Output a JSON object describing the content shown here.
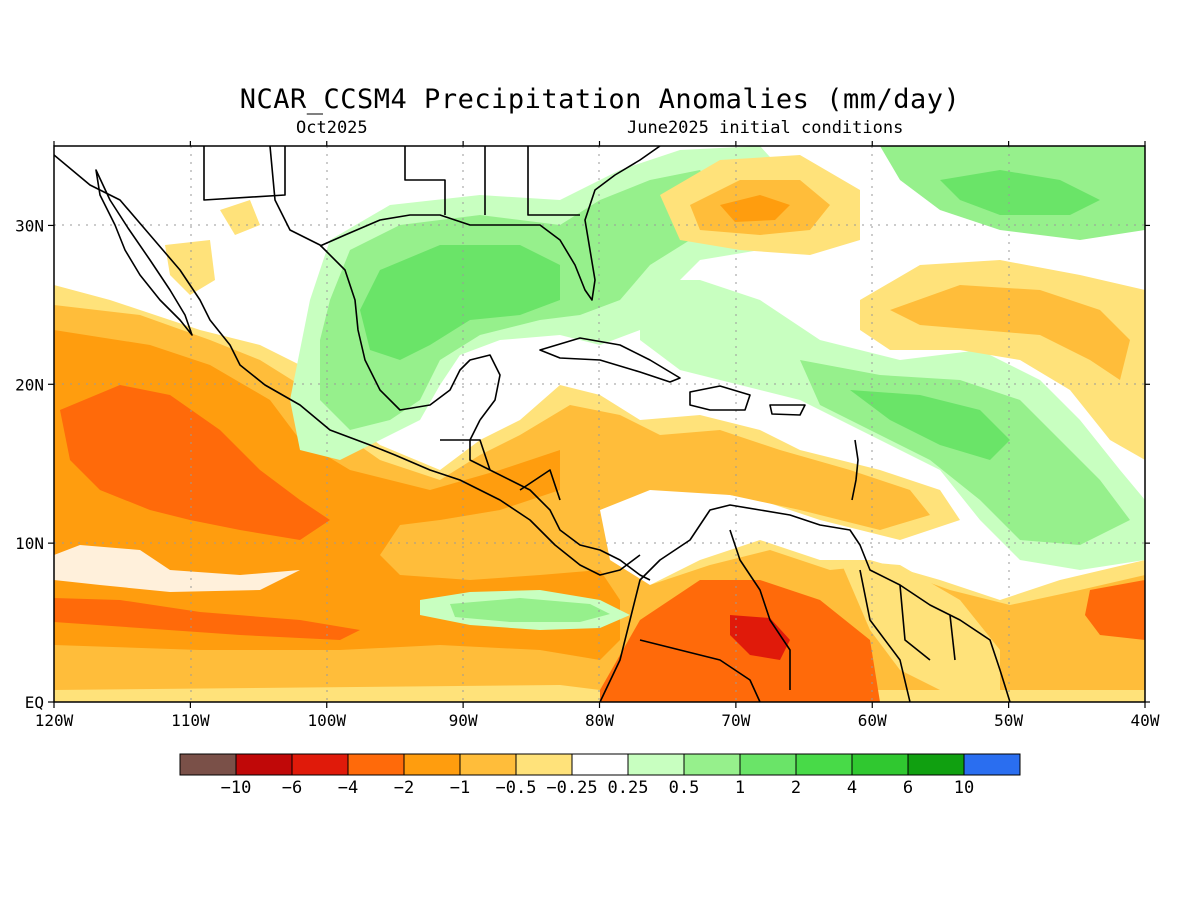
{
  "header": {
    "title": "NCAR_CCSM4 Precipitation Anomalies (mm/day)",
    "left_subtitle": "Oct2025",
    "right_subtitle": "June2025 initial conditions"
  },
  "map": {
    "lon_range": [
      -120,
      -40
    ],
    "lat_range": [
      0,
      35
    ],
    "grid": true,
    "lon_ticks": [
      {
        "lon": -120,
        "label": "120W"
      },
      {
        "lon": -110,
        "label": "110W"
      },
      {
        "lon": -100,
        "label": "100W"
      },
      {
        "lon": -90,
        "label": "90W"
      },
      {
        "lon": -80,
        "label": "80W"
      },
      {
        "lon": -70,
        "label": "70W"
      },
      {
        "lon": -60,
        "label": "60W"
      },
      {
        "lon": -50,
        "label": "50W"
      },
      {
        "lon": -40,
        "label": "40W"
      }
    ],
    "lat_ticks": [
      {
        "lat": 0,
        "label": "EQ"
      },
      {
        "lat": 10,
        "label": "10N"
      },
      {
        "lat": 20,
        "label": "20N"
      },
      {
        "lat": 30,
        "label": "30N"
      }
    ]
  },
  "colorbar": {
    "colors": [
      "#7a5048",
      "#c00808",
      "#e01a0a",
      "#ff6a0a",
      "#ff9d0e",
      "#ffbd3a",
      "#ffe27a",
      "#ffffff",
      "#c8ffc0",
      "#96f08c",
      "#6ae468",
      "#48da48",
      "#30c830",
      "#10a010",
      "#2a6ef0"
    ],
    "labels": [
      "−10",
      "−6",
      "−4",
      "−2",
      "−1",
      "−0.5",
      "−0.25",
      "0.25",
      "0.5",
      "1",
      "2",
      "4",
      "6",
      "10"
    ]
  },
  "colors": {
    "dry_strong": "#ff6a0a",
    "dry": "#ff9d0e",
    "dry_mild": "#ffbd3a",
    "dry_slight": "#ffe27a",
    "wet_slight": "#c8ffc0",
    "wet": "#96f08c",
    "wet_more": "#6ae468",
    "very_dry": "#e01a0a"
  }
}
